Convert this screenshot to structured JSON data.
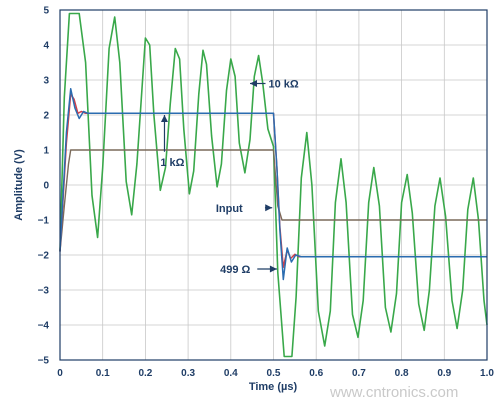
{
  "chart_data": {
    "type": "line",
    "title": "",
    "xlabel": "Time (µs)",
    "ylabel": "Amplitude (V)",
    "xlim": [
      0,
      1.0
    ],
    "ylim": [
      -5,
      5
    ],
    "x_ticks": [
      "0",
      "0.1",
      "0.2",
      "0.3",
      "0.4",
      "0.5",
      "0.6",
      "0.7",
      "0.8",
      "0.9",
      "1.0"
    ],
    "y_ticks": [
      "5",
      "4",
      "3",
      "2",
      "1",
      "0",
      "−1",
      "−2",
      "−3",
      "−4",
      "−5"
    ],
    "grid": true,
    "legend": "none",
    "series": [
      {
        "name": "Input",
        "color": "#7a6a5a",
        "points": [
          [
            0,
            -1.9
          ],
          [
            0.01,
            -0.6
          ],
          [
            0.02,
            0.6
          ],
          [
            0.025,
            1.0
          ],
          [
            0.5,
            1.0
          ],
          [
            0.51,
            -0.6
          ],
          [
            0.52,
            -1.0
          ],
          [
            1.0,
            -1.0
          ]
        ]
      },
      {
        "name": "499 Ω",
        "color": "#d0404a",
        "points": [
          [
            0,
            -1.9
          ],
          [
            0.015,
            1.2
          ],
          [
            0.025,
            2.6
          ],
          [
            0.033,
            2.45
          ],
          [
            0.042,
            2.05
          ],
          [
            0.05,
            2.1
          ],
          [
            0.06,
            2.05
          ],
          [
            0.5,
            2.05
          ],
          [
            0.508,
            0.5
          ],
          [
            0.515,
            -1.2
          ],
          [
            0.523,
            -2.35
          ],
          [
            0.532,
            -1.85
          ],
          [
            0.54,
            -2.1
          ],
          [
            0.55,
            -1.98
          ],
          [
            0.56,
            -2.05
          ],
          [
            1.0,
            -2.05
          ]
        ]
      },
      {
        "name": "1 kΩ",
        "color": "#2b6cb0",
        "points": [
          [
            0,
            -1.9
          ],
          [
            0.015,
            1.5
          ],
          [
            0.025,
            2.75
          ],
          [
            0.035,
            2.2
          ],
          [
            0.045,
            1.9
          ],
          [
            0.055,
            2.1
          ],
          [
            0.065,
            2.05
          ],
          [
            0.5,
            2.05
          ],
          [
            0.508,
            0.5
          ],
          [
            0.515,
            -1.3
          ],
          [
            0.523,
            -2.7
          ],
          [
            0.532,
            -1.8
          ],
          [
            0.542,
            -2.2
          ],
          [
            0.552,
            -2.0
          ],
          [
            0.565,
            -2.05
          ],
          [
            1.0,
            -2.05
          ]
        ]
      },
      {
        "name": "10 kΩ",
        "color": "#39a84a",
        "points": [
          [
            0,
            -1.9
          ],
          [
            0.01,
            2.5
          ],
          [
            0.022,
            4.9
          ],
          [
            0.045,
            4.9
          ],
          [
            0.06,
            3.5
          ],
          [
            0.075,
            -0.3
          ],
          [
            0.088,
            -1.5
          ],
          [
            0.1,
            0.5
          ],
          [
            0.115,
            3.9
          ],
          [
            0.128,
            4.8
          ],
          [
            0.14,
            3.5
          ],
          [
            0.155,
            0.1
          ],
          [
            0.168,
            -0.85
          ],
          [
            0.18,
            0.6
          ],
          [
            0.2,
            4.2
          ],
          [
            0.21,
            4.0
          ],
          [
            0.22,
            2.0
          ],
          [
            0.235,
            -0.15
          ],
          [
            0.247,
            0.5
          ],
          [
            0.258,
            2.3
          ],
          [
            0.27,
            3.9
          ],
          [
            0.28,
            3.6
          ],
          [
            0.29,
            1.6
          ],
          [
            0.303,
            -0.25
          ],
          [
            0.313,
            0.4
          ],
          [
            0.325,
            2.6
          ],
          [
            0.335,
            3.85
          ],
          [
            0.343,
            3.45
          ],
          [
            0.355,
            1.4
          ],
          [
            0.368,
            -0.05
          ],
          [
            0.378,
            0.6
          ],
          [
            0.39,
            2.7
          ],
          [
            0.4,
            3.6
          ],
          [
            0.41,
            3.1
          ],
          [
            0.42,
            1.2
          ],
          [
            0.433,
            0.35
          ],
          [
            0.445,
            1.3
          ],
          [
            0.455,
            3.1
          ],
          [
            0.465,
            3.7
          ],
          [
            0.475,
            2.9
          ],
          [
            0.487,
            1.6
          ],
          [
            0.5,
            1.1
          ],
          [
            0.51,
            -2.5
          ],
          [
            0.525,
            -4.9
          ],
          [
            0.543,
            -4.9
          ],
          [
            0.553,
            -3.2
          ],
          [
            0.565,
            0.2
          ],
          [
            0.578,
            1.5
          ],
          [
            0.59,
            0.0
          ],
          [
            0.605,
            -3.6
          ],
          [
            0.62,
            -4.6
          ],
          [
            0.633,
            -3.6
          ],
          [
            0.645,
            -0.5
          ],
          [
            0.658,
            0.75
          ],
          [
            0.67,
            -0.5
          ],
          [
            0.685,
            -3.7
          ],
          [
            0.698,
            -4.35
          ],
          [
            0.71,
            -3.3
          ],
          [
            0.723,
            -0.5
          ],
          [
            0.735,
            0.5
          ],
          [
            0.748,
            -0.6
          ],
          [
            0.762,
            -3.5
          ],
          [
            0.775,
            -4.2
          ],
          [
            0.788,
            -3.1
          ],
          [
            0.8,
            -0.5
          ],
          [
            0.813,
            0.3
          ],
          [
            0.825,
            -0.8
          ],
          [
            0.84,
            -3.4
          ],
          [
            0.853,
            -4.15
          ],
          [
            0.865,
            -3.0
          ],
          [
            0.878,
            -0.6
          ],
          [
            0.89,
            0.2
          ],
          [
            0.903,
            -0.9
          ],
          [
            0.918,
            -3.3
          ],
          [
            0.93,
            -4.1
          ],
          [
            0.943,
            -3.0
          ],
          [
            0.955,
            -0.7
          ],
          [
            0.968,
            0.2
          ],
          [
            0.98,
            -1.0
          ],
          [
            0.993,
            -3.3
          ],
          [
            1.0,
            -4.0
          ]
        ]
      }
    ],
    "annotations": [
      {
        "text": "10 kΩ",
        "x": 0.5,
        "y": 2.9
      },
      {
        "text": "1 kΩ",
        "x": 0.24,
        "y": 1.9
      },
      {
        "text": "Input",
        "x": 0.5,
        "y": -0.65
      },
      {
        "text": "499 Ω",
        "x": 0.5,
        "y": -2.4
      }
    ]
  },
  "watermark": "www.cntronics.com"
}
